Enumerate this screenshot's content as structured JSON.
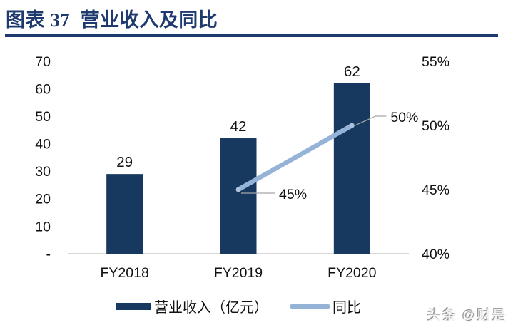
{
  "header": {
    "title": "图表 37  营业收入及同比"
  },
  "watermark": {
    "text": "头条 @财是"
  },
  "legend": {
    "items": [
      {
        "label": "营业收入（亿元）",
        "type": "bar"
      },
      {
        "label": "同比",
        "type": "line"
      }
    ]
  },
  "colors": {
    "title": "#1E3A6E",
    "bar": "#17395F",
    "line": "#95B3D7",
    "marker_fill": "#ADC2E0",
    "axis_text": "#111111",
    "baseline": "#BFBFBF",
    "leader": "#A6A6A6"
  },
  "chart_data": {
    "type": "bar",
    "subtype": "bar-line combo, dual axis",
    "title": "营业收入及同比",
    "categories": [
      "FY2018",
      "FY2019",
      "FY2020"
    ],
    "series": [
      {
        "name": "营业收入（亿元）",
        "type": "bar",
        "axis": "left",
        "values": [
          29,
          42,
          62
        ],
        "data_labels": [
          "29",
          "42",
          "62"
        ]
      },
      {
        "name": "同比",
        "type": "line",
        "axis": "right",
        "values": [
          null,
          45,
          50
        ],
        "data_labels": [
          null,
          "45%",
          "50%"
        ]
      }
    ],
    "left_axis": {
      "range": [
        0,
        70
      ],
      "ticks": [
        {
          "label": "70",
          "value": 70
        },
        {
          "label": "60",
          "value": 60
        },
        {
          "label": "50",
          "value": 50
        },
        {
          "label": "40",
          "value": 40
        },
        {
          "label": "30",
          "value": 30
        },
        {
          "label": "20",
          "value": 20
        },
        {
          "label": "10",
          "value": 10
        },
        {
          "label": "-",
          "value": 0
        }
      ]
    },
    "right_axis": {
      "range": [
        40,
        55
      ],
      "ticks": [
        {
          "label": "55%",
          "value": 55
        },
        {
          "label": "50%",
          "value": 50
        },
        {
          "label": "45%",
          "value": 45
        },
        {
          "label": "40%",
          "value": 40
        }
      ]
    },
    "grid": false,
    "legend_position": "bottom"
  }
}
